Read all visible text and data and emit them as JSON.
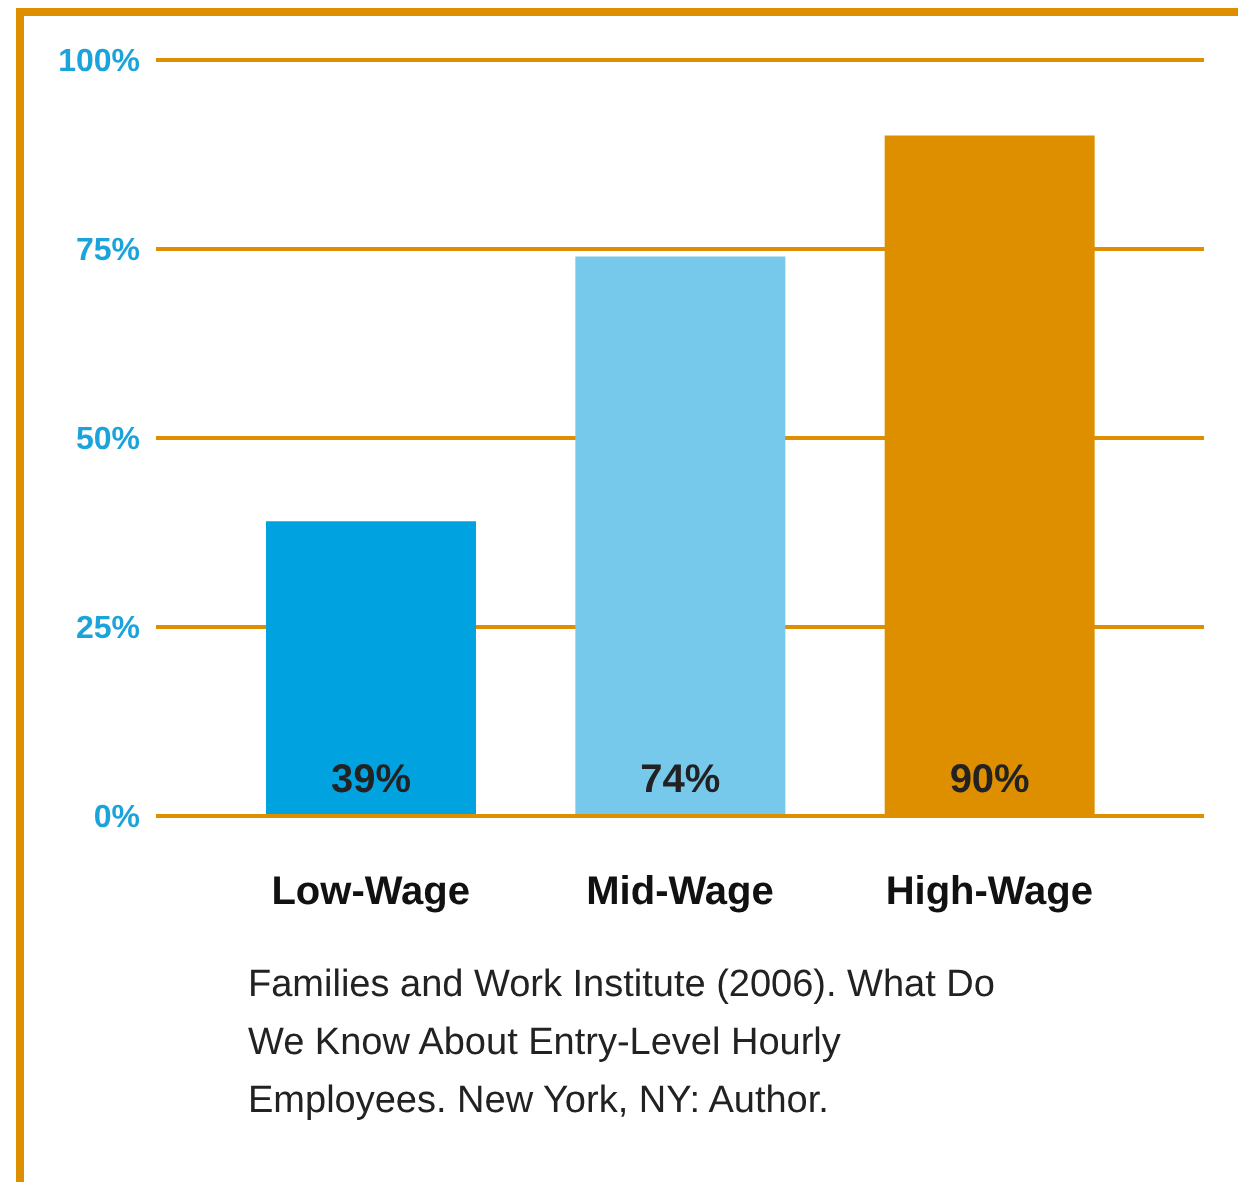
{
  "chart_data": {
    "type": "bar",
    "categories": [
      "Low-Wage",
      "Mid-Wage",
      "High-Wage"
    ],
    "values": [
      39,
      74,
      90
    ],
    "colors": [
      "#00a3e0",
      "#77c9ec",
      "#dd8f00"
    ],
    "ylim": [
      0,
      100
    ],
    "yticks": [
      {
        "value": 0,
        "label": "0%"
      },
      {
        "value": 25,
        "label": "25%"
      },
      {
        "value": 50,
        "label": "50%"
      },
      {
        "value": 75,
        "label": "75%"
      },
      {
        "value": 100,
        "label": "100%"
      }
    ],
    "grid": "y",
    "value_labels": [
      "39%",
      "74%",
      "90%"
    ],
    "annotations": [
      "Families and Work Institute (2006). What Do We Know About Entry-Level Hourly Employees. New York, NY: Author."
    ]
  }
}
